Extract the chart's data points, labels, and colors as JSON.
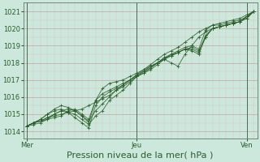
{
  "bg_color": "#cce8dc",
  "plot_bg_color": "#cce8dc",
  "grid_color_major": "#c8a0a0",
  "grid_color_minor": "#ddc0c0",
  "line_color": "#2a5e2a",
  "marker_color": "#2a5e2a",
  "xlabel": "Pression niveau de la mer( hPa )",
  "xlabel_fontsize": 8,
  "yticks": [
    1014,
    1015,
    1016,
    1017,
    1018,
    1019,
    1020,
    1021
  ],
  "xtick_labels": [
    "Mer",
    "Jeu",
    "Ven"
  ],
  "xtick_positions": [
    0,
    16,
    32
  ],
  "ylim": [
    1013.6,
    1021.5
  ],
  "xlim": [
    -0.5,
    33.5
  ],
  "tick_fontsize": 6,
  "vline_color": "#556655",
  "series": [
    [
      1014.3,
      1014.5,
      1014.6,
      1014.8,
      1014.9,
      1015.0,
      1015.1,
      1015.2,
      1015.3,
      1015.5,
      1015.7,
      1015.9,
      1016.1,
      1016.4,
      1016.7,
      1017.0,
      1017.3,
      1017.6,
      1017.9,
      1018.2,
      1018.5,
      1018.7,
      1018.9,
      1019.2,
      1019.5,
      1019.8,
      1020.0,
      1020.2,
      1020.3,
      1020.4,
      1020.5,
      1020.6,
      1020.8,
      1021.0
    ],
    [
      1014.3,
      1014.5,
      1014.6,
      1014.8,
      1015.0,
      1015.2,
      1015.1,
      1015.0,
      1014.7,
      1014.4,
      1014.9,
      1015.2,
      1015.8,
      1016.1,
      1016.4,
      1016.8,
      1017.2,
      1017.5,
      1017.8,
      1018.0,
      1018.3,
      1018.5,
      1018.6,
      1018.8,
      1018.7,
      1018.5,
      1019.5,
      1020.0,
      1020.1,
      1020.2,
      1020.3,
      1020.4,
      1020.7,
      1021.0
    ],
    [
      1014.3,
      1014.5,
      1014.7,
      1015.0,
      1015.2,
      1015.3,
      1015.1,
      1014.8,
      1014.5,
      1014.2,
      1015.5,
      1016.0,
      1016.3,
      1016.5,
      1016.7,
      1017.0,
      1017.3,
      1017.5,
      1017.7,
      1018.0,
      1018.2,
      1018.0,
      1017.8,
      1018.5,
      1019.0,
      1019.5,
      1019.8,
      1020.0,
      1020.1,
      1020.2,
      1020.3,
      1020.4,
      1020.6,
      1021.0
    ],
    [
      1014.3,
      1014.4,
      1014.5,
      1014.7,
      1015.0,
      1015.2,
      1015.3,
      1015.2,
      1014.9,
      1014.6,
      1015.2,
      1015.6,
      1016.0,
      1016.4,
      1016.6,
      1016.9,
      1017.2,
      1017.4,
      1017.7,
      1018.0,
      1018.3,
      1018.4,
      1018.6,
      1018.8,
      1018.8,
      1018.6,
      1019.6,
      1020.0,
      1020.1,
      1020.2,
      1020.3,
      1020.4,
      1020.7,
      1021.0
    ],
    [
      1014.3,
      1014.5,
      1014.6,
      1014.7,
      1014.8,
      1014.9,
      1015.2,
      1015.3,
      1015.0,
      1014.7,
      1015.8,
      1016.2,
      1016.4,
      1016.6,
      1016.8,
      1017.0,
      1017.2,
      1017.4,
      1017.6,
      1017.9,
      1018.2,
      1018.5,
      1018.7,
      1018.9,
      1019.0,
      1018.8,
      1019.9,
      1020.2,
      1020.2,
      1020.3,
      1020.4,
      1020.5,
      1020.7,
      1021.0
    ],
    [
      1014.3,
      1014.5,
      1014.7,
      1015.0,
      1015.3,
      1015.5,
      1015.4,
      1015.2,
      1014.9,
      1014.5,
      1015.8,
      1016.5,
      1016.8,
      1016.9,
      1017.0,
      1017.2,
      1017.4,
      1017.6,
      1017.8,
      1018.0,
      1018.2,
      1018.4,
      1018.6,
      1018.8,
      1018.9,
      1018.7,
      1019.5,
      1020.0,
      1020.1,
      1020.2,
      1020.3,
      1020.4,
      1020.6,
      1021.0
    ]
  ],
  "vline_positions": [
    0,
    16,
    32
  ],
  "num_minor_x": 2
}
